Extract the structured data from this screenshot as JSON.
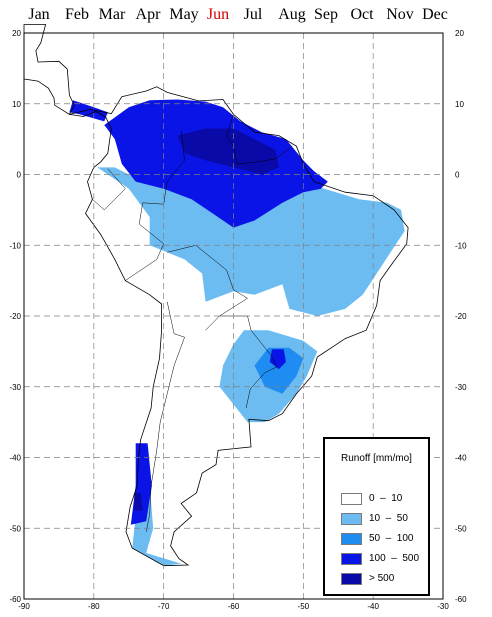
{
  "months": [
    {
      "label": "Jan",
      "active": false
    },
    {
      "label": "Feb",
      "active": false
    },
    {
      "label": "Mar",
      "active": false
    },
    {
      "label": "Apr",
      "active": false
    },
    {
      "label": "May",
      "active": false
    },
    {
      "label": "Jun",
      "active": true
    },
    {
      "label": "Jul",
      "active": false
    },
    {
      "label": "Aug",
      "active": false
    },
    {
      "label": "Sep",
      "active": false
    },
    {
      "label": "Oct",
      "active": false
    },
    {
      "label": "Nov",
      "active": false
    },
    {
      "label": "Dec",
      "active": false
    }
  ],
  "axes": {
    "lon_ticks": [
      "-90",
      "-80",
      "-70",
      "-60",
      "-50",
      "-40",
      "-30"
    ],
    "lat_ticks": [
      "20",
      "10",
      "0",
      "-10",
      "-20",
      "-30",
      "-40",
      "-50",
      "-60"
    ],
    "lon_range": [
      -90,
      -30
    ],
    "lat_range": [
      -60,
      20
    ]
  },
  "legend": {
    "title": "Runoff [mm/mo]",
    "items": [
      {
        "label": "0  –  10",
        "color": "#ffffff"
      },
      {
        "label": "10  –  50",
        "color": "#6cbcf2"
      },
      {
        "label": "50  –  100",
        "color": "#1e8cf0"
      },
      {
        "label": "100  –  500",
        "color": "#0a14e6"
      },
      {
        "label": "> 500",
        "color": "#0a0aa8"
      }
    ]
  },
  "active_month_color": "#d40000"
}
